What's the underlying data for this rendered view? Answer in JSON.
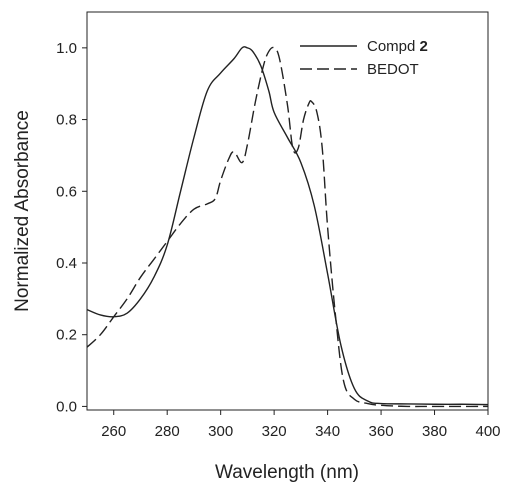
{
  "chart_data": {
    "type": "line",
    "title": "",
    "xlabel": "Wavelength (nm)",
    "ylabel": "Normalized Absorbance",
    "xlim": [
      250,
      400
    ],
    "ylim": [
      -0.01,
      1.1
    ],
    "xticks": [
      260,
      280,
      300,
      320,
      340,
      360,
      380,
      400
    ],
    "yticks": [
      0.0,
      0.2,
      0.4,
      0.6,
      0.8,
      1.0
    ],
    "ytick_labels": [
      "0.0",
      "0.2",
      "0.4",
      "0.6",
      "0.8",
      "1.0"
    ],
    "grid": false,
    "legend_position": "top-right",
    "series": [
      {
        "name": "Compd 2",
        "name_prefix": "Compd ",
        "name_bold": "2",
        "style": "solid",
        "color": "#222222",
        "x": [
          250,
          255,
          260,
          265,
          270,
          275,
          280,
          285,
          290,
          295,
          300,
          305,
          308,
          310,
          312,
          315,
          318,
          320,
          325,
          330,
          335,
          340,
          345,
          350,
          355,
          360,
          370,
          380,
          390,
          400
        ],
        "y": [
          0.27,
          0.255,
          0.25,
          0.26,
          0.3,
          0.36,
          0.45,
          0.6,
          0.75,
          0.88,
          0.93,
          0.97,
          1.0,
          1.0,
          0.99,
          0.95,
          0.88,
          0.82,
          0.75,
          0.68,
          0.56,
          0.37,
          0.17,
          0.05,
          0.015,
          0.008,
          0.007,
          0.006,
          0.006,
          0.005
        ]
      },
      {
        "name": "BEDOT",
        "name_prefix": "BEDOT",
        "name_bold": "",
        "style": "dashed",
        "color": "#222222",
        "x": [
          250,
          255,
          260,
          265,
          270,
          275,
          280,
          285,
          290,
          295,
          298,
          300,
          303,
          305,
          308,
          310,
          313,
          316,
          318,
          320,
          322,
          325,
          327,
          329,
          331,
          333,
          334,
          336,
          338,
          340,
          343,
          346,
          350,
          355,
          360,
          370,
          380,
          390,
          400
        ],
        "y": [
          0.165,
          0.2,
          0.25,
          0.3,
          0.36,
          0.41,
          0.46,
          0.51,
          0.55,
          0.565,
          0.58,
          0.63,
          0.69,
          0.71,
          0.68,
          0.73,
          0.85,
          0.95,
          0.99,
          1.0,
          0.97,
          0.84,
          0.72,
          0.72,
          0.8,
          0.845,
          0.85,
          0.82,
          0.72,
          0.5,
          0.25,
          0.07,
          0.02,
          0.008,
          0.003,
          0.0,
          0.0,
          0.0,
          0.0
        ]
      }
    ]
  }
}
